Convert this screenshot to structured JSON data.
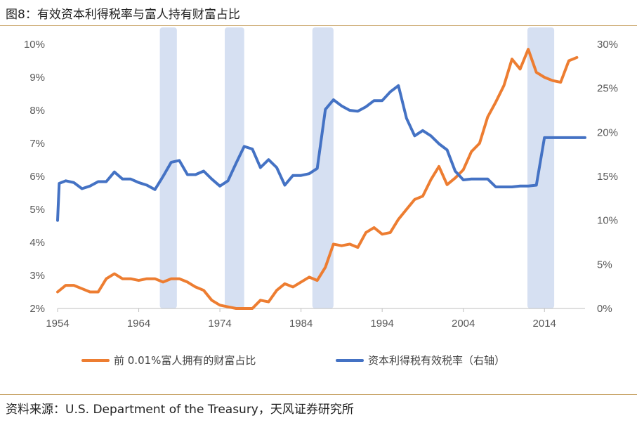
{
  "title": "图8：有效资本利得税率与富人持有财富占比",
  "source": "资料来源：U.S. Department of the Treasury，天风证券研究所",
  "colors": {
    "wealth": "#ed7d31",
    "tax": "#4472c4",
    "recession": "#d6e0f2",
    "rule": "#c8a467"
  },
  "chart_data": {
    "type": "line",
    "title": "",
    "xlabel": "",
    "ylabel": "",
    "x_ticks": [
      "1954",
      "1964",
      "1974",
      "1984",
      "1994",
      "2004",
      "2014"
    ],
    "xlim": [
      1954,
      2019
    ],
    "y_left_ticks": [
      "2%",
      "3%",
      "4%",
      "5%",
      "6%",
      "7%",
      "8%",
      "9%",
      "10%"
    ],
    "y_left_lim": [
      2,
      10
    ],
    "y_right_ticks": [
      "0%",
      "5%",
      "10%",
      "15%",
      "20%",
      "25%",
      "30%"
    ],
    "y_right_lim": [
      0,
      30
    ],
    "shaded_periods": [
      [
        1966.6,
        1968.7
      ],
      [
        1974.6,
        1977
      ],
      [
        1985.4,
        1988
      ],
      [
        2011.9,
        2015.2
      ]
    ],
    "legend": {
      "placement": "bottom"
    },
    "series": [
      {
        "name": "前 0.01%富人拥有的财富占比",
        "axis": "left",
        "x": [
          1954,
          1955,
          1956,
          1957,
          1958,
          1959,
          1960,
          1961,
          1962,
          1963,
          1964,
          1965,
          1966,
          1967,
          1968,
          1969,
          1970,
          1971,
          1972,
          1973,
          1974,
          1975,
          1976,
          1977,
          1978,
          1979,
          1980,
          1981,
          1982,
          1983,
          1984,
          1985,
          1986,
          1987,
          1988,
          1989,
          1990,
          1991,
          1992,
          1993,
          1994,
          1995,
          1996,
          1997,
          1998,
          1999,
          2000,
          2001,
          2002,
          2003,
          2004,
          2005,
          2006,
          2007,
          2008,
          2009,
          2010,
          2011,
          2012,
          2013,
          2014,
          2015,
          2016,
          2017,
          2018
        ],
        "values": [
          2.5,
          2.7,
          2.7,
          2.6,
          2.5,
          2.5,
          2.9,
          3.05,
          2.9,
          2.9,
          2.85,
          2.9,
          2.9,
          2.8,
          2.9,
          2.9,
          2.8,
          2.65,
          2.55,
          2.25,
          2.1,
          2.05,
          2.0,
          2.0,
          2.0,
          2.25,
          2.2,
          2.55,
          2.75,
          2.65,
          2.8,
          2.95,
          2.85,
          3.25,
          3.95,
          3.9,
          3.95,
          3.85,
          4.3,
          4.45,
          4.25,
          4.3,
          4.7,
          5.0,
          5.3,
          5.4,
          5.9,
          6.3,
          5.75,
          5.95,
          6.2,
          6.75,
          7.0,
          7.8,
          8.25,
          8.75,
          9.55,
          9.25,
          9.85,
          9.15,
          9.0,
          8.9,
          8.85,
          9.5,
          9.6
        ]
      },
      {
        "name": "资本利得税有效税率（右轴）",
        "axis": "right",
        "x": [
          1954,
          1954.2,
          1955,
          1956,
          1957,
          1958,
          1959,
          1960,
          1961,
          1962,
          1963,
          1964,
          1965,
          1966,
          1967,
          1968,
          1969,
          1970,
          1971,
          1972,
          1973,
          1974,
          1975,
          1976,
          1977,
          1978,
          1979,
          1980,
          1981,
          1982,
          1983,
          1984,
          1985,
          1986,
          1987,
          1988,
          1989,
          1990,
          1991,
          1992,
          1993,
          1994,
          1995,
          1996,
          1997,
          1998,
          1999,
          2000,
          2001,
          2002,
          2003,
          2004,
          2005,
          2006,
          2007,
          2008,
          2009,
          2010,
          2011,
          2012,
          2013,
          2014,
          2015,
          2016,
          2017,
          2018,
          2019
        ],
        "values": [
          10,
          14.2,
          14.5,
          14.3,
          13.6,
          13.9,
          14.4,
          14.4,
          15.5,
          14.7,
          14.7,
          14.3,
          14,
          13.5,
          15,
          16.6,
          16.8,
          15.2,
          15.2,
          15.6,
          14.7,
          13.9,
          14.5,
          16.5,
          18.4,
          18.1,
          16,
          16.9,
          16,
          14,
          15.1,
          15.1,
          15.3,
          15.9,
          22.6,
          23.7,
          23,
          22.5,
          22.4,
          22.9,
          23.6,
          23.6,
          24.6,
          25.3,
          21.6,
          19.6,
          20.2,
          19.6,
          18.7,
          18,
          15.6,
          14.6,
          14.7,
          14.7,
          14.7,
          13.8,
          13.8,
          13.8,
          13.9,
          13.9,
          14,
          19.4,
          19.4,
          19.4,
          19.4,
          19.4,
          19.4
        ]
      }
    ]
  }
}
